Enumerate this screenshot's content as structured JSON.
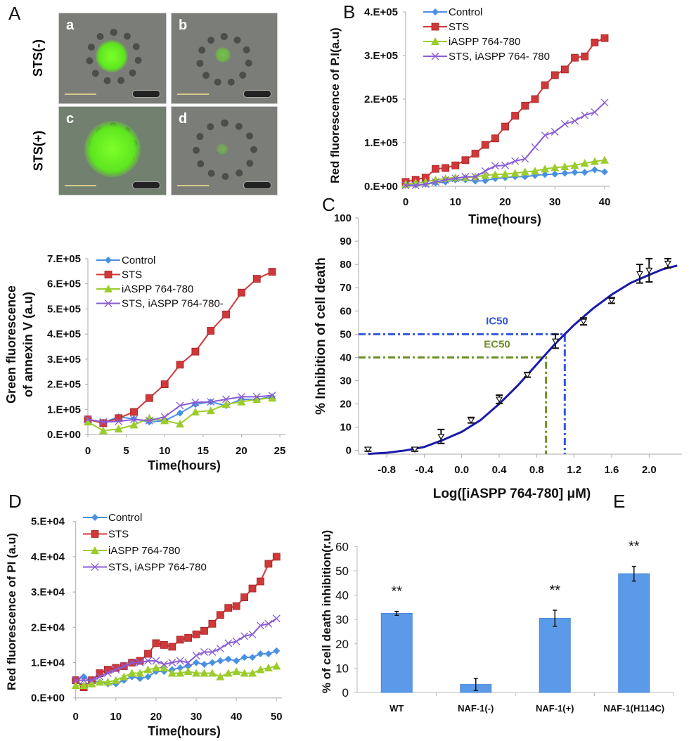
{
  "panels": {
    "A": "A",
    "B": "B",
    "C": "C",
    "D": "D",
    "E": "E"
  },
  "micrographs": {
    "row_labels": [
      "STS(-)",
      "STS(+)"
    ],
    "images": [
      {
        "label": "a",
        "green_signal": "medium"
      },
      {
        "label": "b",
        "green_signal": "faint"
      },
      {
        "label": "c",
        "green_signal": "strong"
      },
      {
        "label": "d",
        "green_signal": "faint"
      }
    ]
  },
  "series_styles": {
    "Control": {
      "color": "#4a90e2",
      "marker": "diamond"
    },
    "STS": {
      "color": "#d0383a",
      "marker": "square"
    },
    "iASPP": {
      "color": "#9ccc2c",
      "marker": "triangle"
    },
    "STS_iASPP": {
      "color": "#8a5cd6",
      "marker": "x"
    }
  },
  "chart_data": [
    {
      "panel": "B",
      "type": "line",
      "xlabel": "Time(hours)",
      "ylabel": "Red fluorescence of  P.I(a.u)",
      "xlim": [
        0,
        40
      ],
      "ylim": [
        0,
        400000
      ],
      "x_ticks": [
        {
          "v": 0,
          "label": "0"
        },
        {
          "v": 10,
          "label": "10"
        },
        {
          "v": 20,
          "label": "20"
        },
        {
          "v": 30,
          "label": "30"
        },
        {
          "v": 40,
          "label": "40"
        }
      ],
      "y_ticks": [
        {
          "v": 0,
          "label": "0.E+00"
        },
        {
          "v": 100000,
          "label": "1.E+05"
        },
        {
          "v": 200000,
          "label": "2.E+05"
        },
        {
          "v": 300000,
          "label": "3.E+05"
        },
        {
          "v": 400000,
          "label": "4.E+05"
        }
      ],
      "x": [
        0,
        2,
        4,
        6,
        8,
        10,
        12,
        14,
        16,
        18,
        20,
        22,
        24,
        26,
        28,
        30,
        32,
        34,
        36,
        38,
        40
      ],
      "series": [
        {
          "name": "Control",
          "style": "Control",
          "values": [
            3000,
            3000,
            5000,
            8000,
            10000,
            15000,
            15000,
            12000,
            13000,
            18000,
            20000,
            22000,
            22000,
            25000,
            27000,
            28000,
            30000,
            32000,
            32000,
            38000,
            33000
          ]
        },
        {
          "name": "STS",
          "style": "STS",
          "values": [
            10000,
            15000,
            20000,
            40000,
            42000,
            48000,
            60000,
            75000,
            95000,
            110000,
            137000,
            162000,
            185000,
            200000,
            232000,
            255000,
            268000,
            295000,
            298000,
            330000,
            340000
          ]
        },
        {
          "name": "iASPP 764-780",
          "style": "iASPP",
          "values": [
            5000,
            8000,
            10000,
            15000,
            18000,
            20000,
            20000,
            22000,
            25000,
            27000,
            28000,
            30000,
            33000,
            35000,
            40000,
            43000,
            45000,
            48000,
            53000,
            57000,
            60000
          ]
        },
        {
          "name": "STS, iASPP 764- 780",
          "style": "STS_iASPP",
          "values": [
            2000,
            2000,
            5000,
            10000,
            15000,
            18000,
            22000,
            22000,
            35000,
            47000,
            48000,
            58000,
            63000,
            90000,
            117000,
            125000,
            143000,
            150000,
            163000,
            170000,
            192000
          ]
        }
      ],
      "legend": "top-left"
    },
    {
      "panel": "A",
      "type": "line",
      "xlabel": "Time(hours)",
      "ylabel": [
        "Green fluorescence",
        "of annexin V (a.u)"
      ],
      "xlim": [
        0,
        25
      ],
      "ylim": [
        0,
        700000
      ],
      "x_ticks": [
        {
          "v": 0,
          "label": "0"
        },
        {
          "v": 5,
          "label": "5"
        },
        {
          "v": 10,
          "label": "10"
        },
        {
          "v": 15,
          "label": "15"
        },
        {
          "v": 20,
          "label": "20"
        },
        {
          "v": 25,
          "label": "25"
        }
      ],
      "y_ticks": [
        {
          "v": 0,
          "label": "0.E+00"
        },
        {
          "v": 100000,
          "label": "1.E+05"
        },
        {
          "v": 200000,
          "label": "2.E+05"
        },
        {
          "v": 300000,
          "label": "3.E+05"
        },
        {
          "v": 400000,
          "label": "4.E+05"
        },
        {
          "v": 500000,
          "label": "5.E+05"
        },
        {
          "v": 600000,
          "label": "6.E+05"
        },
        {
          "v": 700000,
          "label": "7.E+05"
        }
      ],
      "x": [
        0,
        2,
        4,
        6,
        8,
        10,
        12,
        14,
        16,
        18,
        20,
        22,
        24
      ],
      "series": [
        {
          "name": "Control",
          "style": "Control",
          "values": [
            60000,
            48000,
            70000,
            62000,
            50000,
            55000,
            85000,
            120000,
            130000,
            115000,
            140000,
            140000,
            150000
          ]
        },
        {
          "name": "STS",
          "style": "STS",
          "values": [
            60000,
            45000,
            65000,
            90000,
            145000,
            200000,
            278000,
            330000,
            413000,
            478000,
            565000,
            620000,
            648000
          ]
        },
        {
          "name": "iASPP 764-780",
          "style": "iASPP",
          "values": [
            50000,
            15000,
            22000,
            38000,
            65000,
            55000,
            42000,
            90000,
            95000,
            120000,
            130000,
            140000,
            145000
          ]
        },
        {
          "name": "STS, iASPP 764-780-",
          "style": "STS_iASPP",
          "values": [
            60000,
            50000,
            52000,
            60000,
            55000,
            70000,
            115000,
            128000,
            130000,
            140000,
            150000,
            150000,
            155000
          ]
        }
      ],
      "legend": "top-left"
    },
    {
      "panel": "C",
      "type": "scatter",
      "xlabel": "Log([iASPP 764-780] μM)",
      "ylabel": "% Inhibition of cell death",
      "xlim": [
        -1.1,
        2.35
      ],
      "ylim": [
        0,
        100
      ],
      "x_ticks": [
        {
          "v": -0.8,
          "label": "-0.8"
        },
        {
          "v": -0.4,
          "label": "-0.4"
        },
        {
          "v": 0.0,
          "label": "0.0"
        },
        {
          "v": 0.4,
          "label": "0.4"
        },
        {
          "v": 0.8,
          "label": "0.8"
        },
        {
          "v": 1.2,
          "label": "1.2"
        },
        {
          "v": 1.6,
          "label": "1.6"
        },
        {
          "v": 2.0,
          "label": "2.0"
        }
      ],
      "y_ticks": [
        {
          "v": 0,
          "label": "0"
        },
        {
          "v": 10,
          "label": "10"
        },
        {
          "v": 20,
          "label": "20"
        },
        {
          "v": 30,
          "label": "30"
        },
        {
          "v": 40,
          "label": "40"
        },
        {
          "v": 50,
          "label": "50"
        },
        {
          "v": 60,
          "label": "60"
        },
        {
          "v": 70,
          "label": "70"
        },
        {
          "v": 80,
          "label": "80"
        },
        {
          "v": 90,
          "label": "90"
        },
        {
          "v": 100,
          "label": "100"
        }
      ],
      "points": [
        {
          "x": -1.0,
          "y": 0.5,
          "err": 0.8
        },
        {
          "x": -0.5,
          "y": 0.5,
          "err": 0.8
        },
        {
          "x": -0.22,
          "y": 6,
          "err": 3
        },
        {
          "x": 0.1,
          "y": 13,
          "err": 1.2
        },
        {
          "x": 0.4,
          "y": 22,
          "err": 1.8
        },
        {
          "x": 0.7,
          "y": 32.5,
          "err": 1
        },
        {
          "x": 1.0,
          "y": 47,
          "err": 3
        },
        {
          "x": 1.3,
          "y": 55.5,
          "err": 1.5
        },
        {
          "x": 1.6,
          "y": 64.5,
          "err": 1.2
        },
        {
          "x": 1.9,
          "y": 76,
          "err": 4
        },
        {
          "x": 2.0,
          "y": 77.5,
          "err": 5
        },
        {
          "x": 2.2,
          "y": 80.5,
          "err": 2
        }
      ],
      "fit_curve": [
        [
          -1.0,
          -1.5
        ],
        [
          -0.8,
          -1
        ],
        [
          -0.6,
          0
        ],
        [
          -0.4,
          1.5
        ],
        [
          -0.2,
          4.5
        ],
        [
          0.0,
          8
        ],
        [
          0.2,
          13
        ],
        [
          0.4,
          20
        ],
        [
          0.6,
          28
        ],
        [
          0.8,
          37
        ],
        [
          1.0,
          46
        ],
        [
          1.1,
          50
        ],
        [
          1.2,
          54
        ],
        [
          1.4,
          61
        ],
        [
          1.6,
          67
        ],
        [
          1.8,
          72
        ],
        [
          2.0,
          75.5
        ],
        [
          2.15,
          78
        ],
        [
          2.3,
          79.5
        ]
      ],
      "fit_color": "#1a1aaa",
      "annotations": [
        {
          "label": "IC50",
          "x": 1.1,
          "y": 50,
          "color": "#3355dd"
        },
        {
          "label": "EC50",
          "x": 0.9,
          "y": 40,
          "color": "#6b8e23"
        }
      ]
    },
    {
      "panel": "D",
      "type": "line",
      "xlabel": "Time(hours)",
      "ylabel": "Red fluorescence of PI (a.u)",
      "xlim": [
        0,
        50
      ],
      "ylim": [
        0,
        50000
      ],
      "x_ticks": [
        {
          "v": 0,
          "label": "0"
        },
        {
          "v": 10,
          "label": "10"
        },
        {
          "v": 20,
          "label": "20"
        },
        {
          "v": 30,
          "label": "30"
        },
        {
          "v": 40,
          "label": "40"
        },
        {
          "v": 50,
          "label": "50"
        }
      ],
      "y_ticks": [
        {
          "v": 0,
          "label": "0.E+00"
        },
        {
          "v": 10000,
          "label": "1.E+04"
        },
        {
          "v": 20000,
          "label": "2.E+04"
        },
        {
          "v": 30000,
          "label": "3.E+04"
        },
        {
          "v": 40000,
          "label": "4.E+04"
        },
        {
          "v": 50000,
          "label": "5.E+04"
        }
      ],
      "x": [
        0,
        2,
        4,
        6,
        8,
        10,
        12,
        14,
        16,
        18,
        20,
        22,
        24,
        26,
        28,
        30,
        32,
        34,
        36,
        38,
        40,
        42,
        44,
        46,
        48,
        50
      ],
      "series": [
        {
          "name": "Control",
          "style": "Control",
          "values": [
            5000,
            6000,
            4500,
            4500,
            4000,
            4000,
            5000,
            6000,
            5500,
            6000,
            7500,
            7500,
            8000,
            8500,
            9000,
            10000,
            9500,
            10000,
            10500,
            11000,
            10500,
            11500,
            11500,
            12500,
            12500,
            13300
          ]
        },
        {
          "name": "STS",
          "style": "STS",
          "values": [
            5000,
            3000,
            5000,
            7000,
            8000,
            8500,
            9000,
            10000,
            10500,
            12500,
            15500,
            15000,
            14500,
            16500,
            17000,
            18000,
            19000,
            21000,
            23500,
            25500,
            26000,
            28500,
            31000,
            33000,
            38000,
            40000
          ]
        },
        {
          "name": "iASPP 764-780",
          "style": "iASPP",
          "values": [
            3500,
            3500,
            4000,
            4500,
            4500,
            5000,
            6000,
            7000,
            7000,
            8000,
            8500,
            8500,
            7000,
            7000,
            7500,
            7000,
            7000,
            7000,
            6000,
            7000,
            7500,
            7000,
            7000,
            8000,
            8500,
            9000
          ]
        },
        {
          "name": "STS, iASPP 764-780",
          "style": "STS_iASPP",
          "values": [
            5000,
            5000,
            5000,
            6000,
            7000,
            8000,
            9000,
            10000,
            10000,
            10500,
            10500,
            9500,
            10000,
            10500,
            10000,
            12000,
            13000,
            13000,
            14000,
            15500,
            16000,
            17500,
            18000,
            20500,
            21000,
            22500
          ]
        }
      ],
      "legend": "top-left"
    },
    {
      "panel": "E",
      "type": "bar",
      "xlabel": "",
      "ylabel": "% of cell death inhibition(r.u)",
      "ylim": [
        0,
        60
      ],
      "y_ticks": [
        {
          "v": 0,
          "label": "0"
        },
        {
          "v": 10,
          "label": "10"
        },
        {
          "v": 20,
          "label": "20"
        },
        {
          "v": 30,
          "label": "30"
        },
        {
          "v": 40,
          "label": "40"
        },
        {
          "v": 50,
          "label": "50"
        },
        {
          "v": 60,
          "label": "60"
        }
      ],
      "categories": [
        "WT",
        "NAF-1(-)",
        "NAF-1(+)",
        "NAF-1(H114C)"
      ],
      "values": [
        32.5,
        3.3,
        30.5,
        48.8
      ],
      "errors": [
        0.8,
        2.5,
        3.3,
        3
      ],
      "significance": [
        "**",
        "",
        "**",
        "**"
      ],
      "bar_color": "#5b9ae8"
    }
  ]
}
